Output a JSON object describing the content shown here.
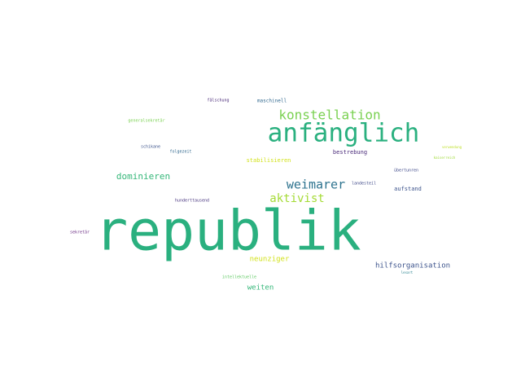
{
  "words": [
    {
      "text": "republik",
      "color": "#2ab07f"
    },
    {
      "text": "anfänglich",
      "color": "#2ab07f"
    },
    {
      "text": "konstellation",
      "color": "#7ad151"
    },
    {
      "text": "weimarer",
      "color": "#2c728e"
    },
    {
      "text": "aktivist",
      "color": "#a5db36"
    },
    {
      "text": "dominieren",
      "color": "#35b779"
    },
    {
      "text": "neunziger",
      "color": "#d2e21b"
    },
    {
      "text": "hilfsorganisation",
      "color": "#3b528b"
    },
    {
      "text": "weiten",
      "color": "#35b779"
    },
    {
      "text": "aufstand",
      "color": "#3b528b"
    },
    {
      "text": "bestrebung",
      "color": "#482878"
    },
    {
      "text": "stabilisieren",
      "color": "#d2e21b"
    },
    {
      "text": "maschinell",
      "color": "#31688e"
    },
    {
      "text": "fälschung",
      "color": "#482878"
    },
    {
      "text": "folgezeit",
      "color": "#31688e"
    },
    {
      "text": "schikane",
      "color": "#3b528b"
    },
    {
      "text": "generalsekretär",
      "color": "#7ad151"
    },
    {
      "text": "hunderttausend",
      "color": "#46337e"
    },
    {
      "text": "landesteil",
      "color": "#3e4989"
    },
    {
      "text": "übertunren",
      "color": "#3e4989"
    },
    {
      "text": "intellektuelle",
      "color": "#5ec962"
    },
    {
      "text": "sekretär",
      "color": "#6a2c83"
    },
    {
      "text": "lesart",
      "color": "#26828e"
    },
    {
      "text": "kaiserreich",
      "color": "#a0da39"
    },
    {
      "text": "verwendung",
      "color": "#bddf26"
    }
  ]
}
